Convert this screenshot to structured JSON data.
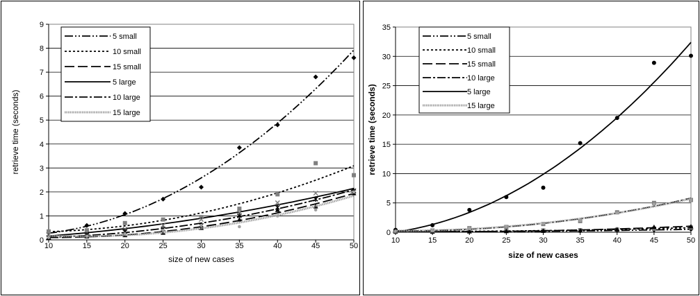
{
  "chart_data": [
    {
      "type": "scatter",
      "title": "",
      "xlabel": "size of new cases",
      "ylabel": "retrieve time (seconds)",
      "xlim": [
        10,
        50
      ],
      "ylim": [
        0,
        9
      ],
      "xticks": [
        10,
        15,
        20,
        25,
        30,
        35,
        40,
        45,
        50
      ],
      "yticks": [
        0,
        1,
        2,
        3,
        4,
        5,
        6,
        7,
        8,
        9
      ],
      "grid": "horizontal",
      "legend_position": "top-left",
      "trendline": "polynomial",
      "series": [
        {
          "name": "5 small",
          "x": [
            10,
            15,
            20,
            25,
            30,
            35,
            40,
            45,
            50
          ],
          "y": [
            0.3,
            0.6,
            1.1,
            1.7,
            2.2,
            3.85,
            4.8,
            6.8,
            7.6
          ],
          "marker": "diamond",
          "color": "#000000",
          "dash": "12,3,2,3,2,3"
        },
        {
          "name": "10 small",
          "x": [
            10,
            15,
            20,
            25,
            30,
            35,
            40,
            45,
            50
          ],
          "y": [
            0.35,
            0.4,
            0.7,
            0.85,
            0.95,
            1.3,
            1.9,
            3.2,
            2.7
          ],
          "marker": "square",
          "color": "#808080",
          "dash": "3,3"
        },
        {
          "name": "15 small",
          "x": [
            10,
            15,
            20,
            25,
            30,
            35,
            40,
            45,
            50
          ],
          "y": [
            0.1,
            0.15,
            0.2,
            0.3,
            0.5,
            0.85,
            1.25,
            1.4,
            1.95
          ],
          "marker": "triangle",
          "color": "#000000",
          "dash": "14,5"
        },
        {
          "name": "5 large",
          "x": [
            10,
            15,
            20,
            25,
            30,
            35,
            40,
            45,
            50
          ],
          "y": [
            0.2,
            0.3,
            0.45,
            0.6,
            0.85,
            1.15,
            1.55,
            1.95,
            2.0
          ],
          "marker": "x",
          "color": "#808080",
          "dash": ""
        },
        {
          "name": "10 large",
          "x": [
            10,
            15,
            20,
            25,
            30,
            35,
            40,
            45,
            50
          ],
          "y": [
            0.1,
            0.2,
            0.35,
            0.45,
            0.6,
            1.0,
            1.35,
            1.7,
            2.05
          ],
          "marker": "asterisk",
          "color": "#000000",
          "dash": "12,3,3,3"
        },
        {
          "name": "15 large",
          "x": [
            10,
            15,
            20,
            25,
            30,
            35,
            40,
            45,
            50
          ],
          "y": [
            0.1,
            0.15,
            0.25,
            0.4,
            0.6,
            0.55,
            1.0,
            1.25,
            2.0
          ],
          "marker": "dot",
          "color": "#a0a0a0",
          "dash": "1.5,1"
        }
      ]
    },
    {
      "type": "scatter",
      "title": "",
      "xlabel": "size of new cases",
      "ylabel": "retrieve time (seconds)",
      "xlim": [
        10,
        50
      ],
      "ylim": [
        0,
        35
      ],
      "xticks": [
        10,
        15,
        20,
        25,
        30,
        35,
        40,
        45,
        50
      ],
      "yticks": [
        0,
        5,
        10,
        15,
        20,
        25,
        30,
        35
      ],
      "grid": "horizontal",
      "legend_position": "top-left",
      "trendline": "polynomial",
      "series": [
        {
          "name": "5 small",
          "x": [
            10,
            15,
            20,
            25,
            30,
            35,
            40,
            45,
            50
          ],
          "y": [
            0.1,
            0.1,
            0.1,
            0.15,
            0.2,
            0.2,
            0.3,
            0.4,
            0.5
          ],
          "marker": "diamond",
          "color": "#000000",
          "dash": "12,3,2,3,2,3"
        },
        {
          "name": "10 small",
          "x": [
            10,
            15,
            20,
            25,
            30,
            35,
            40,
            45,
            50
          ],
          "y": [
            0.1,
            0.15,
            0.2,
            0.2,
            0.3,
            0.35,
            0.45,
            0.6,
            0.8
          ],
          "marker": "square",
          "color": "#808080",
          "dash": "3,3"
        },
        {
          "name": "15 small",
          "x": [
            10,
            15,
            20,
            25,
            30,
            35,
            40,
            45,
            50
          ],
          "y": [
            0.1,
            0.1,
            0.15,
            0.2,
            0.25,
            0.3,
            0.5,
            0.9,
            1.0
          ],
          "marker": "triangle",
          "color": "#000000",
          "dash": "14,5"
        },
        {
          "name": "10 large",
          "x": [
            10,
            15,
            20,
            25,
            30,
            35,
            40,
            45,
            50
          ],
          "y": [
            0.2,
            0.3,
            0.7,
            0.9,
            1.4,
            1.9,
            3.4,
            5.0,
            5.5
          ],
          "marker": "square",
          "color": "#808080",
          "dash": "12,3,3,3"
        },
        {
          "name": "5 large",
          "x": [
            10,
            15,
            20,
            25,
            30,
            35,
            40,
            45,
            50
          ],
          "y": [
            0.4,
            1.2,
            3.8,
            6.0,
            7.6,
            15.2,
            19.5,
            28.9,
            30.1
          ],
          "marker": "circle",
          "color": "#000000",
          "dash": ""
        },
        {
          "name": "15 large",
          "x": [
            10,
            15,
            20,
            25,
            30,
            35,
            40,
            45,
            50
          ],
          "y": [
            0.2,
            0.3,
            0.7,
            1.0,
            1.5,
            2.0,
            3.3,
            4.8,
            5.5
          ],
          "marker": "dot",
          "color": "#a0a0a0",
          "dash": "1.5,1"
        }
      ]
    }
  ]
}
